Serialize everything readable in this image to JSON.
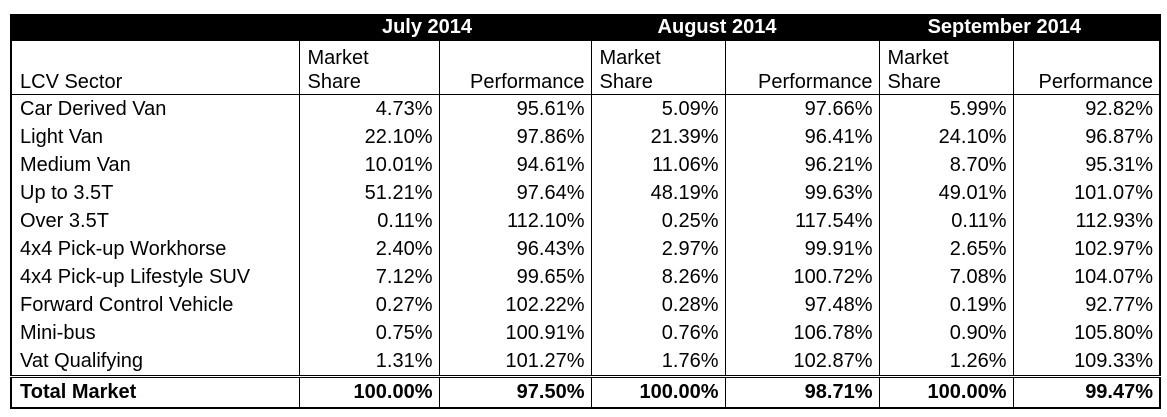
{
  "table": {
    "months": [
      "July 2014",
      "August 2014",
      "September 2014"
    ],
    "sector_header": "LCV Sector",
    "market_share_header": "Market\nShare",
    "market_share_line1": "Market",
    "market_share_line2": "Share",
    "performance_header": "Performance",
    "rows": [
      {
        "sector": "Car Derived Van",
        "values": [
          "4.73%",
          "95.61%",
          "5.09%",
          "97.66%",
          "5.99%",
          "92.82%"
        ]
      },
      {
        "sector": "Light Van",
        "values": [
          "22.10%",
          "97.86%",
          "21.39%",
          "96.41%",
          "24.10%",
          "96.87%"
        ]
      },
      {
        "sector": "Medium Van",
        "values": [
          "10.01%",
          "94.61%",
          "11.06%",
          "96.21%",
          "8.70%",
          "95.31%"
        ]
      },
      {
        "sector": "Up to 3.5T",
        "values": [
          "51.21%",
          "97.64%",
          "48.19%",
          "99.63%",
          "49.01%",
          "101.07%"
        ]
      },
      {
        "sector": "Over 3.5T",
        "values": [
          "0.11%",
          "112.10%",
          "0.25%",
          "117.54%",
          "0.11%",
          "112.93%"
        ]
      },
      {
        "sector": "4x4 Pick-up Workhorse",
        "values": [
          "2.40%",
          "96.43%",
          "2.97%",
          "99.91%",
          "2.65%",
          "102.97%"
        ]
      },
      {
        "sector": "4x4 Pick-up Lifestyle SUV",
        "values": [
          "7.12%",
          "99.65%",
          "8.26%",
          "100.72%",
          "7.08%",
          "104.07%"
        ]
      },
      {
        "sector": "Forward Control Vehicle",
        "values": [
          "0.27%",
          "102.22%",
          "0.28%",
          "97.48%",
          "0.19%",
          "92.77%"
        ]
      },
      {
        "sector": "Mini-bus",
        "values": [
          "0.75%",
          "100.91%",
          "0.76%",
          "106.78%",
          "0.90%",
          "105.80%"
        ]
      },
      {
        "sector": "Vat Qualifying",
        "values": [
          "1.31%",
          "101.27%",
          "1.76%",
          "102.87%",
          "1.26%",
          "109.33%"
        ]
      }
    ],
    "total": {
      "sector": "Total Market",
      "values": [
        "100.00%",
        "97.50%",
        "100.00%",
        "98.71%",
        "100.00%",
        "99.47%"
      ]
    }
  }
}
